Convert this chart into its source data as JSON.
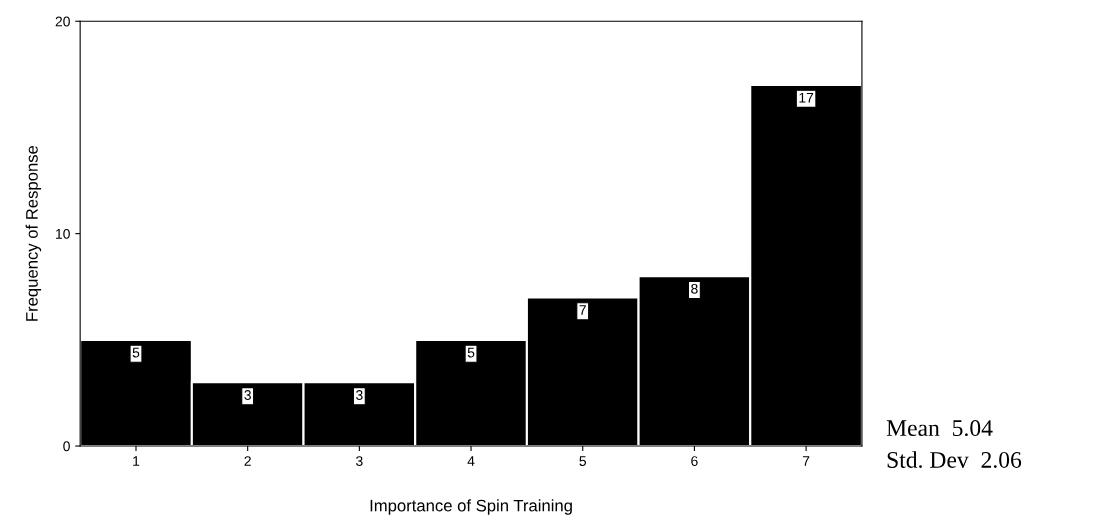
{
  "chart_data": {
    "type": "bar",
    "xlabel": "Importance of Spin Training",
    "ylabel": "Frequency of Response",
    "categories": [
      "1",
      "2",
      "3",
      "4",
      "5",
      "6",
      "7"
    ],
    "values": [
      5,
      3,
      3,
      5,
      7,
      8,
      17
    ],
    "color": "#000000",
    "ylim": [
      0,
      20
    ],
    "yticks": [
      0,
      10,
      20
    ],
    "data_labels": true,
    "grid": false,
    "annotations": [
      "Mean  5.04",
      "Std. Dev  2.06"
    ]
  }
}
